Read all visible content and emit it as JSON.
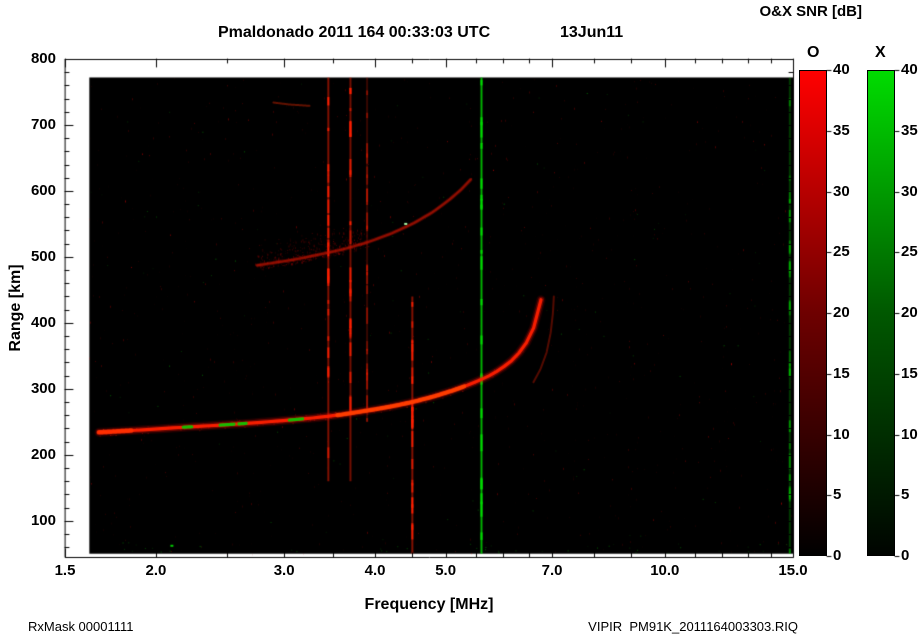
{
  "chart_data": {
    "type": "heatmap",
    "title": "Pmaldonado 2011 164 00:33:03 UTC",
    "date_label": "13Jun11",
    "colorbar_units": "O&X SNR [dB]",
    "xlabel": "Frequency [MHz]",
    "ylabel": "Range [km]",
    "x_scale": "log",
    "xlim": [
      1.5,
      15.0
    ],
    "ylim": [
      45,
      800
    ],
    "x_ticks": [
      1.5,
      2.0,
      3.0,
      4.0,
      5.0,
      7.0,
      10.0,
      15.0
    ],
    "x_tick_labels": [
      "1.5",
      "2.0",
      "3.0",
      "4.0",
      "5.0",
      "7.0",
      "10.0",
      "15.0"
    ],
    "x_minor_ticks": [
      2.5,
      3.5,
      4.5,
      5.5,
      6.0,
      6.5,
      8.0,
      9.0,
      11.0,
      12.0,
      13.0,
      14.0
    ],
    "y_ticks": [
      100,
      200,
      300,
      400,
      500,
      600,
      700,
      800
    ],
    "y_minor_step": 20,
    "plot_background": "#000000",
    "grid": false,
    "legend_position": "none",
    "data_extent": {
      "f_min": 1.62,
      "f_max": 15.0,
      "r_min": 50,
      "r_max": 772
    },
    "colorbars": [
      {
        "label": "O",
        "mode": "O-mode",
        "range": [
          0,
          40
        ],
        "ticks": [
          0,
          5,
          10,
          15,
          20,
          25,
          30,
          35,
          40
        ],
        "gradient": [
          "#000000",
          "#6e0000",
          "#ff0000"
        ]
      },
      {
        "label": "X",
        "mode": "X-mode",
        "range": [
          0,
          40
        ],
        "ticks": [
          0,
          5,
          10,
          15,
          20,
          25,
          30,
          35,
          40
        ],
        "gradient": [
          "#000400",
          "#005800",
          "#00dc00"
        ]
      }
    ],
    "traces": {
      "f_layer_first_hop": {
        "color": "#ff2000",
        "points": [
          [
            1.67,
            234
          ],
          [
            1.8,
            236
          ],
          [
            2.0,
            239
          ],
          [
            2.2,
            242
          ],
          [
            2.45,
            245
          ],
          [
            2.7,
            248
          ],
          [
            3.0,
            252
          ],
          [
            3.3,
            256
          ],
          [
            3.6,
            261
          ],
          [
            3.9,
            267
          ],
          [
            4.2,
            273
          ],
          [
            4.5,
            280
          ],
          [
            4.8,
            288
          ],
          [
            5.1,
            297
          ],
          [
            5.4,
            307
          ],
          [
            5.7,
            318
          ],
          [
            5.95,
            330
          ],
          [
            6.15,
            342
          ],
          [
            6.35,
            358
          ],
          [
            6.5,
            375
          ],
          [
            6.62,
            395
          ],
          [
            6.7,
            413
          ],
          [
            6.76,
            435
          ]
        ]
      },
      "f_layer_second_hop": {
        "color": "#c81400",
        "points": [
          [
            2.75,
            487
          ],
          [
            2.9,
            491
          ],
          [
            3.1,
            496
          ],
          [
            3.3,
            502
          ],
          [
            3.6,
            511
          ],
          [
            3.9,
            522
          ],
          [
            4.2,
            535
          ],
          [
            4.5,
            550
          ],
          [
            4.8,
            568
          ],
          [
            5.05,
            586
          ],
          [
            5.25,
            602
          ],
          [
            5.42,
            618
          ]
        ]
      },
      "x_mode_echo": {
        "color": "#e01e00",
        "points": [
          [
            6.6,
            310
          ],
          [
            6.75,
            330
          ],
          [
            6.88,
            355
          ],
          [
            6.97,
            385
          ],
          [
            7.02,
            415
          ],
          [
            7.04,
            440
          ]
        ]
      },
      "faint_high_echo": {
        "color": "#dc2800",
        "points": [
          [
            2.9,
            734
          ],
          [
            3.05,
            731
          ],
          [
            3.25,
            729
          ]
        ]
      }
    },
    "green_overlay_segments": [
      [
        2.18,
        2.24
      ],
      [
        2.45,
        2.56
      ],
      [
        2.6,
        2.66
      ],
      [
        3.05,
        3.18
      ]
    ],
    "rfi_lines": [
      {
        "freq": 3.45,
        "color": "#ff2000",
        "r_bottom": 160,
        "r_top": 772,
        "alpha": 0.5
      },
      {
        "freq": 3.7,
        "color": "#ff2000",
        "r_bottom": 160,
        "r_top": 772,
        "alpha": 0.45
      },
      {
        "freq": 3.9,
        "color": "#ff2000",
        "r_bottom": 250,
        "r_top": 772,
        "alpha": 0.22
      },
      {
        "freq": 4.5,
        "color": "#ff2000",
        "r_bottom": 50,
        "r_top": 440,
        "alpha": 0.5
      },
      {
        "freq": 5.6,
        "color": "#00dd00",
        "r_bottom": 50,
        "r_top": 772,
        "alpha": 0.8
      },
      {
        "freq": 14.85,
        "color": "#00cc00",
        "r_bottom": 50,
        "r_top": 772,
        "alpha": 0.28
      }
    ],
    "specks": [
      {
        "f": 4.4,
        "r": 550,
        "color": "#aaffaa"
      },
      {
        "f": 2.1,
        "r": 62,
        "color": "#00cc00"
      }
    ]
  },
  "footer": {
    "left": "RxMask 00001111",
    "right": "VIPIR  PM91K_2011164003303.RIQ"
  }
}
